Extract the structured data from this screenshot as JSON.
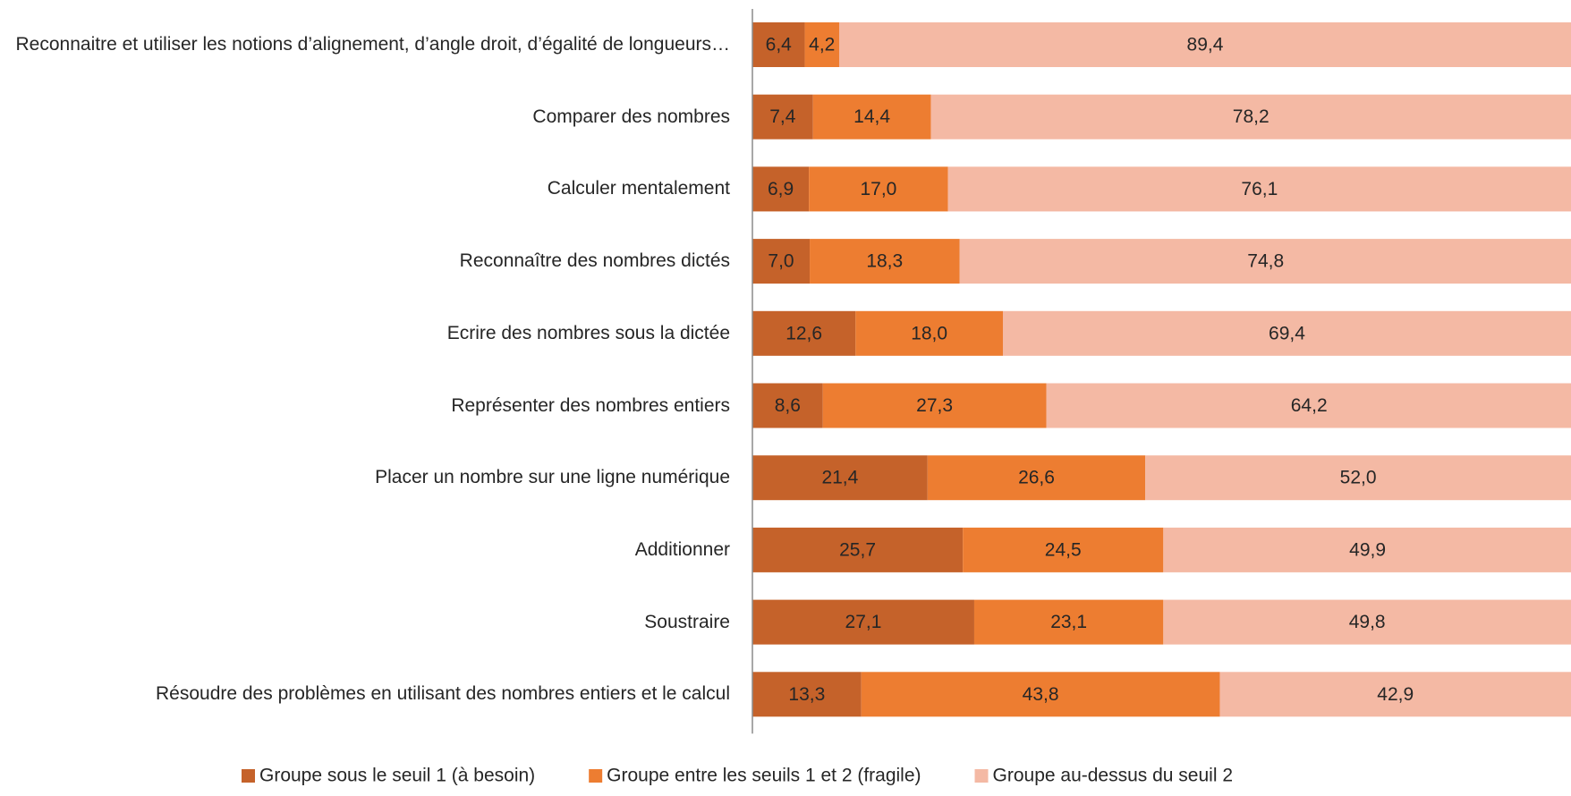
{
  "chart_data": {
    "type": "stacked-barh",
    "categories": [
      "Reconnaitre et utiliser les notions d’alignement, d’angle droit, d’égalité de longueurs…",
      "Comparer des nombres",
      "Calculer mentalement",
      "Reconnaître des nombres dictés",
      "Ecrire des nombres sous la dictée",
      "Représenter des nombres entiers",
      "Placer un nombre sur une ligne numérique",
      "Additionner",
      "Soustraire",
      "Résoudre des problèmes en utilisant des nombres entiers et le calcul"
    ],
    "series": [
      {
        "name": "Groupe sous le seuil 1 (à besoin)",
        "color": "#c5622a",
        "values": [
          6.4,
          7.4,
          6.9,
          7.0,
          12.6,
          8.6,
          21.4,
          25.7,
          27.1,
          13.3
        ],
        "value_labels": [
          "6,4",
          "7,4",
          "6,9",
          "7,0",
          "12,6",
          "8,6",
          "21,4",
          "25,7",
          "27,1",
          "13,3"
        ]
      },
      {
        "name": "Groupe entre les seuils 1 et 2 (fragile)",
        "color": "#ed7d31",
        "values": [
          4.2,
          14.4,
          17.0,
          18.3,
          18.0,
          27.3,
          26.6,
          24.5,
          23.1,
          43.8
        ],
        "value_labels": [
          "4,2",
          "14,4",
          "17,0",
          "18,3",
          "18,0",
          "27,3",
          "26,6",
          "24,5",
          "23,1",
          "43,8"
        ]
      },
      {
        "name": "Groupe au-dessus du seuil 2",
        "color": "#f4b9a4",
        "values": [
          89.4,
          78.2,
          76.1,
          74.8,
          69.4,
          64.2,
          52.0,
          49.9,
          49.8,
          42.9
        ],
        "value_labels": [
          "89,4",
          "78,2",
          "76,1",
          "74,8",
          "69,4",
          "64,2",
          "52,0",
          "49,9",
          "49,8",
          "42,9"
        ]
      }
    ],
    "xlim": [
      0,
      100
    ],
    "legend": "bottom"
  }
}
